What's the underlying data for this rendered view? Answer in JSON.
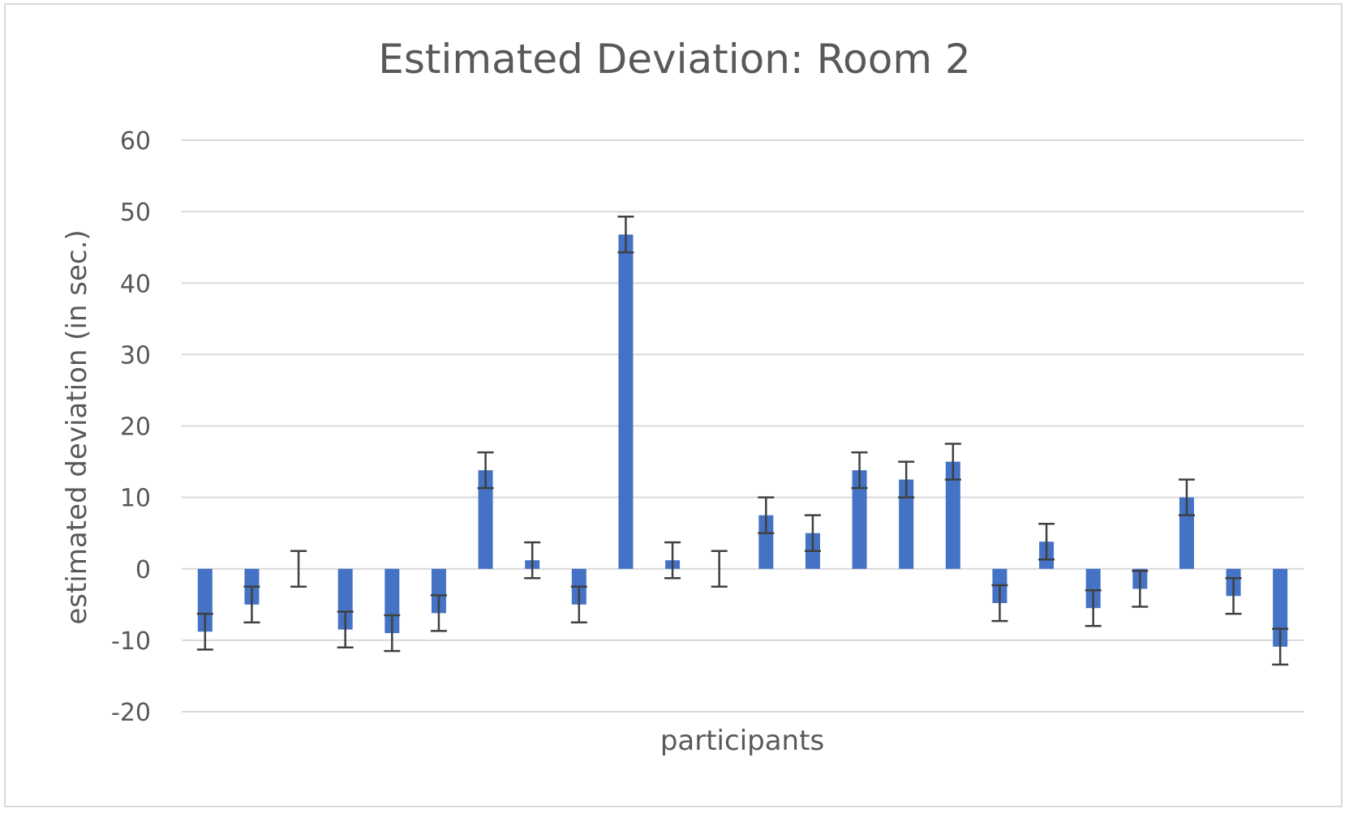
{
  "chart_data": {
    "type": "bar",
    "title": "Estimated Deviation: Room 2",
    "xlabel": "participants",
    "ylabel": "estimated deviation (in sec.)",
    "ylim": [
      -20,
      60
    ],
    "yticks": [
      60,
      50,
      40,
      30,
      20,
      10,
      0,
      -10,
      -20
    ],
    "grid": true,
    "legend": "none",
    "bar_color": "#4472c4",
    "errorbar_color": "#404040",
    "gridline_color": "#d9d9d9",
    "values": [
      -8.8,
      -5.0,
      0,
      -8.5,
      -9.0,
      -6.2,
      13.8,
      1.2,
      -5.0,
      46.8,
      1.2,
      0,
      7.5,
      5.0,
      13.8,
      12.5,
      15.0,
      -4.8,
      3.8,
      -5.5,
      -2.8,
      10.0,
      -3.8,
      -10.9
    ],
    "error": 2.5
  }
}
